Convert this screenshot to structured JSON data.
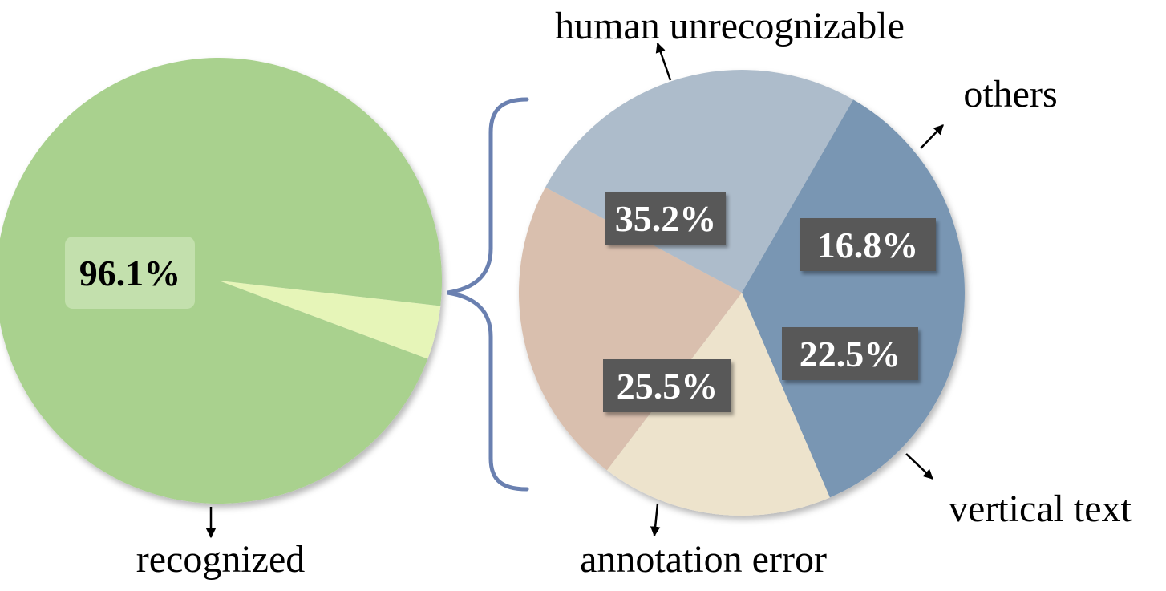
{
  "chart_data": [
    {
      "type": "pie",
      "slices": [
        {
          "label": "recognized",
          "value": 96.1,
          "color": "#a9d18e",
          "value_text": "96.1%"
        },
        {
          "label": "",
          "value": 3.9,
          "color": "#e6f5b8"
        }
      ]
    },
    {
      "type": "pie",
      "slices": [
        {
          "label": "human unrecognizable",
          "value": 35.2,
          "color": "#7996b3",
          "value_text": "35.2%"
        },
        {
          "label": "others",
          "value": 16.8,
          "color": "#ede3cc",
          "value_text": "16.8%"
        },
        {
          "label": "vertical text",
          "value": 22.5,
          "color": "#d9bfae",
          "value_text": "22.5%"
        },
        {
          "label": "annotation error",
          "value": 25.5,
          "color": "#adbccb",
          "value_text": "25.5%"
        }
      ]
    }
  ],
  "colors": {
    "brace": "#6a80b0",
    "value_box": "#595959",
    "value_box_text": "#ffffff",
    "main_value_box": "#c3e0ad"
  }
}
